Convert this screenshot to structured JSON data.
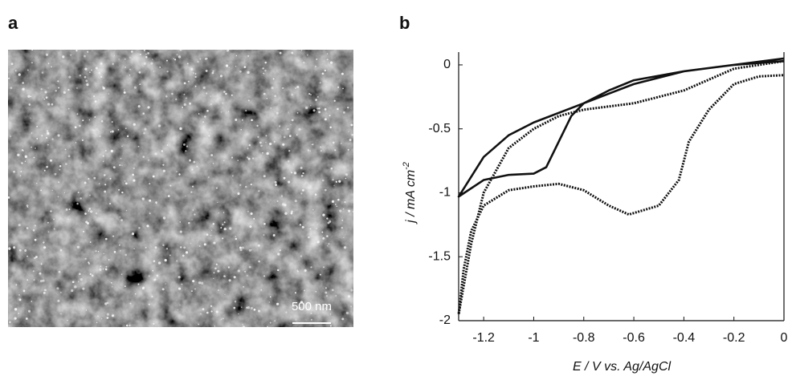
{
  "panel_a": {
    "label": "a",
    "scale_bar": "500 nm"
  },
  "chart_data": {
    "type": "line",
    "panel_label": "b",
    "xlabel": "E / V vs. Ag/AgCl",
    "ylabel": {
      "text": "j / mA cm",
      "sup": "-2"
    },
    "xlim": [
      -1.3,
      0
    ],
    "ylim": [
      -2,
      0.1
    ],
    "xticks": [
      -1.2,
      -1,
      -0.8,
      -0.6,
      -0.4,
      -0.2,
      0
    ],
    "yticks": [
      0,
      -0.5,
      -1,
      -1.5,
      -2
    ],
    "grid": false,
    "series": [
      {
        "color": "#111111",
        "style": "solid",
        "x": [
          0,
          -0.2,
          -0.4,
          -0.6,
          -0.8,
          -1.0,
          -1.1,
          -1.2,
          -1.3,
          -1.2,
          -1.1,
          -1.0,
          -0.95,
          -0.9,
          -0.85,
          -0.8,
          -0.7,
          -0.6,
          -0.4,
          -0.2,
          0
        ],
        "values": [
          0.05,
          0.0,
          -0.05,
          -0.15,
          -0.3,
          -0.45,
          -0.55,
          -0.72,
          -1.03,
          -0.9,
          -0.86,
          -0.85,
          -0.8,
          -0.6,
          -0.4,
          -0.3,
          -0.2,
          -0.12,
          -0.05,
          0.0,
          0.03
        ]
      },
      {
        "color": "#111111",
        "style": "dotted",
        "x": [
          0,
          -0.2,
          -0.4,
          -0.6,
          -0.8,
          -0.9,
          -1.0,
          -1.1,
          -1.2,
          -1.25,
          -1.3,
          -1.28,
          -1.25,
          -1.2,
          -1.1,
          -1.0,
          -0.9,
          -0.8,
          -0.7,
          -0.62,
          -0.5,
          -0.42,
          -0.38,
          -0.3,
          -0.2,
          -0.1,
          0
        ],
        "values": [
          0.03,
          -0.03,
          -0.2,
          -0.3,
          -0.35,
          -0.4,
          -0.5,
          -0.65,
          -1.0,
          -1.4,
          -1.95,
          -1.6,
          -1.3,
          -1.1,
          -0.98,
          -0.95,
          -0.93,
          -0.98,
          -1.1,
          -1.17,
          -1.1,
          -0.9,
          -0.6,
          -0.35,
          -0.15,
          -0.09,
          -0.08
        ]
      }
    ]
  }
}
